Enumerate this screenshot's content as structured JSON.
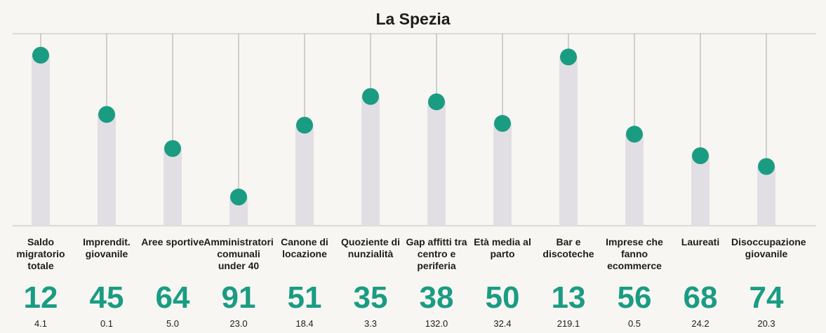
{
  "chart_data": {
    "type": "lollipop",
    "title": "La Spezia",
    "categories": [
      "Saldo migratorio totale",
      "Imprendit. giovanile",
      "Aree sportive",
      "Amministratori comunali under 40",
      "Canone di locazione",
      "Quoziente di nunzialità",
      "Gap affitti tra centro e periferia",
      "Età media al parto",
      "Bar e discoteche",
      "Imprese che fanno ecommerce",
      "Laureati",
      "Disoccupazione giovanile"
    ],
    "values": [
      12,
      45,
      64,
      91,
      51,
      35,
      38,
      50,
      13,
      56,
      68,
      74
    ],
    "indicator_values": [
      "4.1",
      "0.1",
      "5.0",
      "23.0",
      "18.4",
      "3.3",
      "132.0",
      "32.4",
      "219.1",
      "0.5",
      "24.2",
      "20.3"
    ],
    "ylim": [
      107,
      0
    ],
    "dot_color": "#1a9c83",
    "bar_color": "#e1dfe3"
  }
}
